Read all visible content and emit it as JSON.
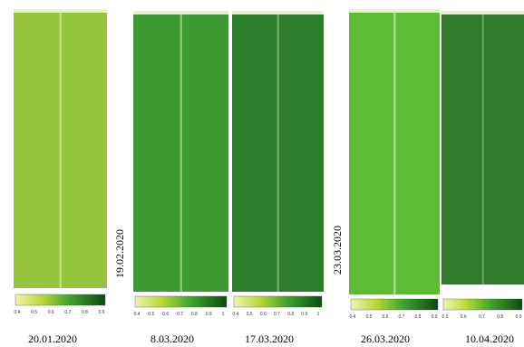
{
  "panels": [
    {
      "date": "20.01.2020",
      "ticks": [
        0.4,
        0.5,
        0.6,
        0.7,
        0.8,
        0.9
      ]
    },
    {
      "date": "8.03.2020",
      "ticks": [
        0.4,
        0.5,
        0.6,
        0.7,
        0.8,
        0.9,
        1
      ]
    },
    {
      "date": "17.03.2020",
      "ticks": [
        0.4,
        0.5,
        0.6,
        0.7,
        0.8,
        0.9,
        1
      ]
    },
    {
      "date": "26.03.2020",
      "ticks": [
        0.4,
        0.5,
        0.6,
        0.7,
        0.8,
        0.9
      ]
    },
    {
      "date": "10.04.2020",
      "ticks": [
        0.5,
        0.6,
        0.7,
        0.8,
        0.9
      ]
    }
  ],
  "side_labels": [
    "19.02.2020",
    "23.03.2020"
  ]
}
